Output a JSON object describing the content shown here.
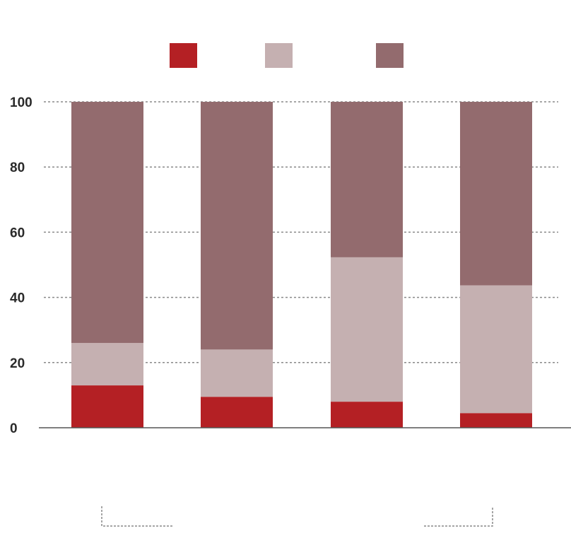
{
  "chart_data": {
    "type": "bar",
    "stacked": true,
    "percent": true,
    "categories": [
      "",
      "",
      "",
      ""
    ],
    "series": [
      {
        "values": [
          13,
          9.5,
          8,
          4.5
        ],
        "color": "#b42024"
      },
      {
        "values": [
          13,
          14.5,
          44.3,
          39.2
        ],
        "color": "#c5b0b1"
      },
      {
        "values": [
          74,
          76,
          47.7,
          56.3
        ],
        "color": "#936b6e"
      }
    ],
    "ylim": [
      0,
      100
    ],
    "yticks": [
      0,
      20,
      40,
      60,
      80,
      100
    ],
    "grid": true,
    "legend": "top-center"
  }
}
